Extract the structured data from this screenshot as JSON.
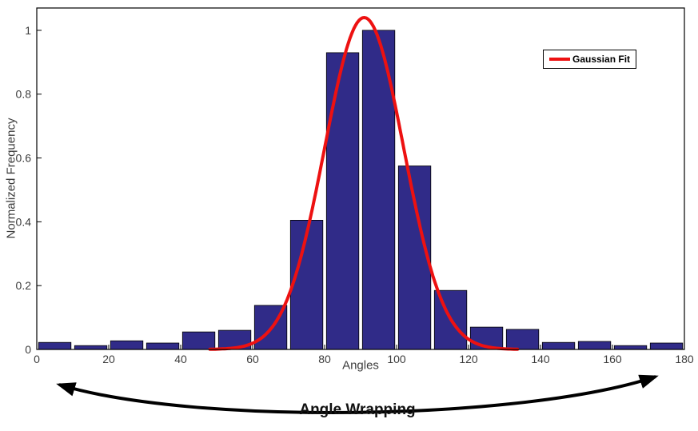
{
  "figure": {
    "background": "#ffffff"
  },
  "chart_data": {
    "type": "bar",
    "subtype": "histogram-with-gaussian-fit",
    "title": "",
    "xlabel": "Angles",
    "ylabel": "Normalized Frequency",
    "xlim": [
      0,
      180
    ],
    "ylim": [
      0,
      1.07
    ],
    "xticks": [
      0,
      20,
      40,
      60,
      80,
      100,
      120,
      140,
      160,
      180
    ],
    "yticks": [
      0,
      0.2,
      0.4,
      0.6,
      0.8,
      1
    ],
    "grid": false,
    "bar_color": "#302b88",
    "bar_edge_color": "#000000",
    "bars": {
      "centers": [
        5,
        15,
        25,
        35,
        45,
        55,
        65,
        75,
        85,
        95,
        105,
        115,
        125,
        135,
        145,
        155,
        165,
        175
      ],
      "width": 9,
      "values": [
        0.022,
        0.012,
        0.027,
        0.02,
        0.055,
        0.06,
        0.138,
        0.405,
        0.93,
        1.0,
        0.575,
        0.185,
        0.07,
        0.063,
        0.022,
        0.025,
        0.012,
        0.02
      ]
    },
    "gaussian": {
      "amplitude": 1.04,
      "mean": 91,
      "sigma": 11,
      "color": "#ed1111",
      "linewidth": 4
    },
    "legend": {
      "label": "Gaussian Fit",
      "position": "top-right"
    },
    "annotation": {
      "label": "Angle Wrapping",
      "arrow": "curved-double-headed-below-axis"
    }
  }
}
